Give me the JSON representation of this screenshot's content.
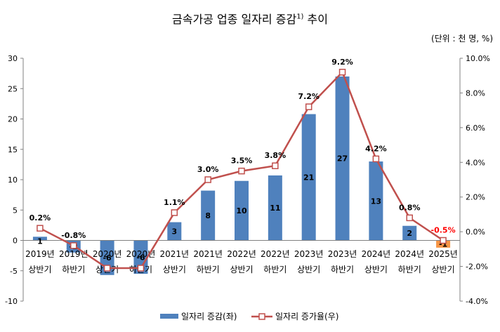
{
  "title": {
    "main": "금속가공 업종 일자리 증감",
    "superscript": "1)",
    "suffix": " 추이"
  },
  "unit": "(단위 : 천 명, %)",
  "chart_data": {
    "type": "bar+line",
    "categories": [
      [
        "2019년",
        "상반기"
      ],
      [
        "2019년",
        "하반기"
      ],
      [
        "2020년",
        "상반기"
      ],
      [
        "2020년",
        "하반기"
      ],
      [
        "2021년",
        "상반기"
      ],
      [
        "2021년",
        "하반기"
      ],
      [
        "2022년",
        "상반기"
      ],
      [
        "2022년",
        "하반기"
      ],
      [
        "2023년",
        "상반기"
      ],
      [
        "2023년",
        "하반기"
      ],
      [
        "2024년",
        "상반기"
      ],
      [
        "2024년",
        "하반기"
      ],
      [
        "2025년",
        "상반기"
      ]
    ],
    "series": [
      {
        "name": "일자리 증감(좌)",
        "type": "bar",
        "axis": "left",
        "values": [
          0.6,
          -2.0,
          -5.7,
          -5.5,
          3.0,
          8.2,
          9.8,
          10.7,
          20.8,
          27.0,
          13.0,
          2.4,
          -1.2
        ],
        "labels": [
          "1",
          "-2",
          "-6",
          "-6",
          "3",
          "8",
          "10",
          "11",
          "21",
          "27",
          "13",
          "2",
          "-1"
        ],
        "color": "#4f81bd",
        "highlight_last_color": "#f79646"
      },
      {
        "name": "일자리 증가율(우)",
        "type": "line",
        "axis": "right",
        "values": [
          0.2,
          -0.8,
          -2.1,
          -2.1,
          1.1,
          3.0,
          3.5,
          3.8,
          7.2,
          9.2,
          4.2,
          0.8,
          -0.5
        ],
        "labels": [
          "0.2%",
          "-0.8%",
          "",
          "",
          "1.1%",
          "3.0%",
          "3.5%",
          "3.8%",
          "7.2%",
          "9.2%",
          "4.2%",
          "0.8%",
          "-0.5%"
        ],
        "color": "#c0504d",
        "highlight_last_label_color": "#ff0000"
      }
    ],
    "y_left": {
      "min": -10,
      "max": 30,
      "ticks": [
        -10,
        -5,
        0,
        5,
        10,
        15,
        20,
        25,
        30
      ]
    },
    "y_right": {
      "min": -4,
      "max": 10,
      "ticks": [
        "-4.0%",
        "-2.0%",
        "0.0%",
        "2.0%",
        "4.0%",
        "6.0%",
        "8.0%",
        "10.0%"
      ],
      "tick_values": [
        -4,
        -2,
        0,
        2,
        4,
        6,
        8,
        10
      ]
    },
    "legend": {
      "position": "bottom",
      "items": [
        "일자리 증감(좌)",
        "일자리 증가율(우)"
      ]
    }
  }
}
